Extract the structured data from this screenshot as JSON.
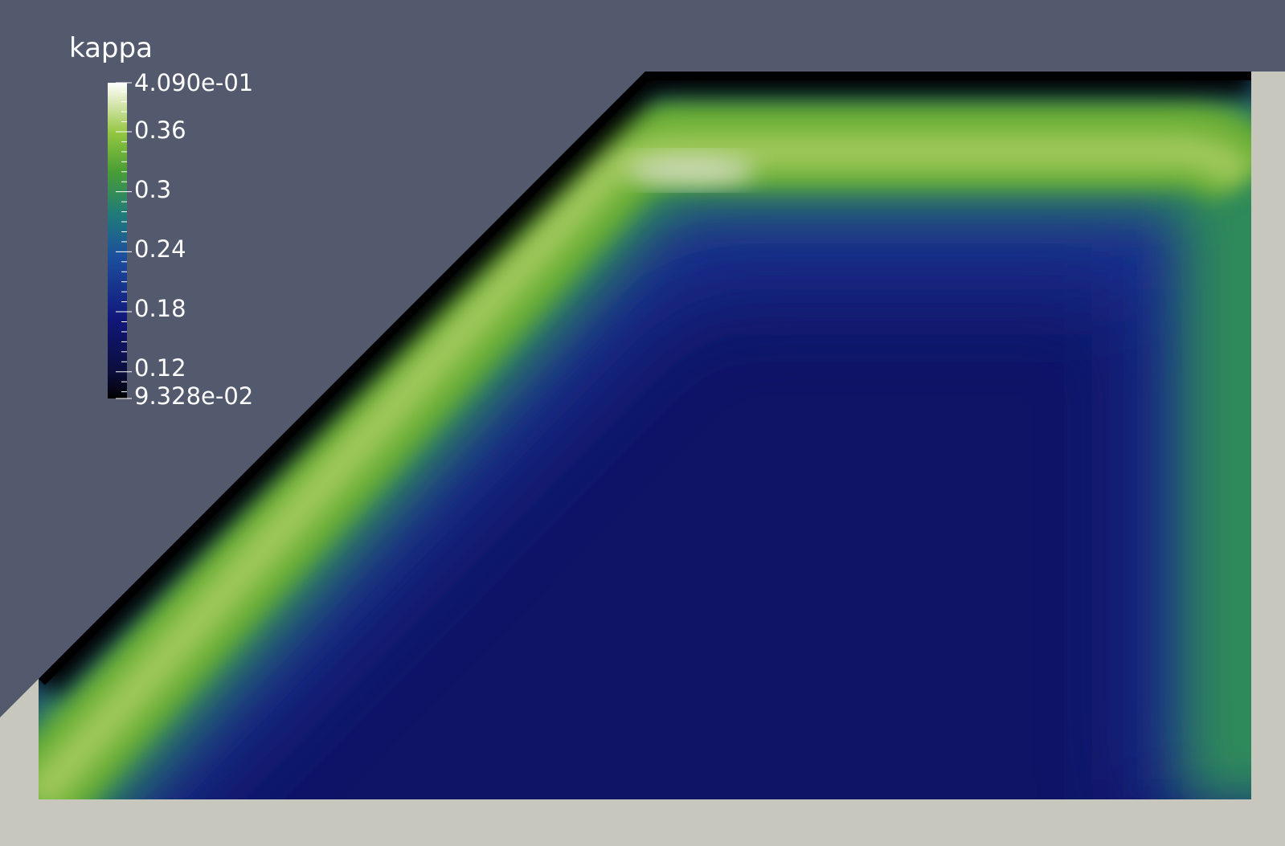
{
  "app": {
    "name": "ParaView render view"
  },
  "scene": {
    "background_color": "#545a6e",
    "wall_color": "#c8c7bd",
    "field": "kappa"
  },
  "colorbar": {
    "title": "kappa",
    "range": [
      0.09328,
      0.409
    ],
    "labels": [
      "4.090e-01",
      "0.36",
      "0.3",
      "0.24",
      "0.18",
      "0.12",
      "9.328e-02"
    ],
    "label_values": [
      0.409,
      0.36,
      0.3,
      0.24,
      0.18,
      0.12,
      0.09328
    ],
    "colormap": [
      "#000000",
      "#0f1466",
      "#1a3a9e",
      "#1f6e80",
      "#3a9a3a",
      "#8cc43a",
      "#dde8b8",
      "#ffffff"
    ]
  }
}
